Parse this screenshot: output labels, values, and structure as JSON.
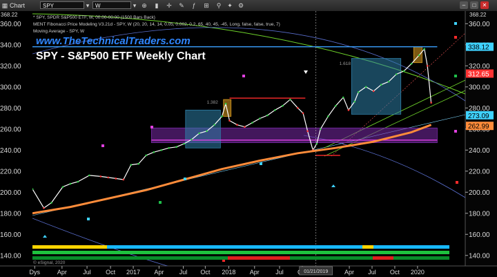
{
  "window": {
    "app_label": "Chart",
    "symbol": "SPY",
    "interval": "W"
  },
  "info_lines": [
    "* SPY, SPDR S&P500 ETF, W, 00:00-00:00 (1500 Bars Back)",
    "MENT Fibonacci Price Modeling V3.21d - SPY, W (20, 20, 14, 14, 0.05, 0.002, 0.2, 65, 40, 45, -45, Long, false, false, true, 7)",
    "Moving Average - SPY, W"
  ],
  "watermark": "www.TheTechnicalTraders.com",
  "chart_title": "SPY - S&P500 ETF Weekly Chart",
  "copyright": "© eSignal, 2020",
  "chart_data": {
    "type": "line",
    "title": "SPY - S&P500 ETF Weekly Chart",
    "ylim": [
      130,
      372
    ],
    "yticks": [
      140,
      160,
      180,
      200,
      220,
      240,
      260,
      280,
      300,
      320,
      340,
      360
    ],
    "ytick_labels": [
      "140.00",
      "160.00",
      "180.00",
      "200.00",
      "220.00",
      "240.00",
      "260.00",
      "280.00",
      "300.00",
      "320.00",
      "340.00",
      "360.00"
    ],
    "top_value_label": "368.22",
    "xticks": [
      {
        "label": "Dys",
        "t": 0.3
      },
      {
        "label": "Apr",
        "t": 3.9
      },
      {
        "label": "Jul",
        "t": 7.2
      },
      {
        "label": "Oct",
        "t": 10.3
      },
      {
        "label": "2017",
        "t": 13.3
      },
      {
        "label": "Apr",
        "t": 16.7
      },
      {
        "label": "Jul",
        "t": 19.9
      },
      {
        "label": "Oct",
        "t": 22.8
      },
      {
        "label": "2018",
        "t": 25.9
      },
      {
        "label": "Apr",
        "t": 29.3
      },
      {
        "label": "Jul",
        "t": 32.6
      },
      {
        "label": "Oct",
        "t": 35.6
      },
      {
        "label": "Apr",
        "t": 41.8
      },
      {
        "label": "Jul",
        "t": 44.8
      },
      {
        "label": "Oct",
        "t": 47.8
      },
      {
        "label": "2020",
        "t": 50.8
      }
    ],
    "cursor": {
      "label": "01/21/2019",
      "t": 37.4
    },
    "series": [
      {
        "name": "SPY",
        "color": "#ffffff",
        "t": [
          0,
          1.5,
          2.5,
          4,
          5,
          6,
          7.5,
          9,
          10,
          11,
          12,
          13,
          14,
          15,
          16,
          17,
          18,
          19,
          20,
          21,
          22,
          23,
          24,
          25,
          25.5,
          26,
          27,
          28,
          29,
          30,
          31,
          32,
          33,
          34,
          35,
          35.7,
          36.3,
          37,
          37.5,
          38,
          39,
          40,
          41,
          41.7,
          42.5,
          43,
          44,
          45,
          46,
          47,
          48,
          49,
          50,
          51,
          51.7,
          52.1,
          52.6
        ],
        "values": [
          203,
          185,
          190,
          205,
          208,
          210,
          216,
          215,
          214,
          213,
          212,
          226,
          227,
          235,
          238,
          240,
          242,
          243,
          246,
          250,
          256,
          258,
          264,
          272,
          284,
          268,
          264,
          262,
          266,
          270,
          273,
          278,
          282,
          288,
          280,
          275,
          258,
          240,
          246,
          260,
          272,
          282,
          290,
          278,
          286,
          295,
          300,
          296,
          302,
          305,
          312,
          315,
          322,
          330,
          336,
          320,
          285
        ]
      },
      {
        "name": "Moving Average",
        "color": "#ff8c3a",
        "t": [
          0,
          5,
          10,
          15,
          20,
          25,
          30,
          35,
          40,
          45,
          50,
          52.6
        ],
        "values": [
          180,
          186,
          194,
          202,
          212,
          222,
          230,
          237,
          242,
          248,
          257,
          264
        ]
      }
    ],
    "levels": [
      {
        "name": "upper-horizontal",
        "value": 338.12,
        "label": "338.12",
        "color": "#3aa0ff",
        "t0": 0,
        "t1": 53.4
      },
      {
        "name": "magenta-support",
        "value": 249.5,
        "color": "#e040e0",
        "t0": 15.7,
        "t1": 53.4
      },
      {
        "name": "red-level-2018",
        "value": 289.3,
        "color": "#ff2a2a",
        "t0": 26,
        "t1": 36
      },
      {
        "name": "red-level-2019",
        "value": 235,
        "color": "#ff2a2a",
        "t0": 37.3,
        "t1": 40.6
      }
    ],
    "zones": [
      {
        "name": "purple-support-zone",
        "y0": 247,
        "y1": 261,
        "t0": 15.7,
        "t1": 53.4,
        "color": "#7a2aa8"
      },
      {
        "name": "blue-box-2017",
        "y0": 242,
        "y1": 278,
        "t0": 20.2,
        "t1": 24.8,
        "color": "#2e7fa8"
      },
      {
        "name": "blue-box-2019",
        "y0": 274,
        "y1": 327,
        "t0": 42.1,
        "t1": 48.6,
        "color": "#2e7fa8"
      },
      {
        "name": "orange-box-2018",
        "y0": 272,
        "y1": 288,
        "t0": 25.2,
        "t1": 26.2,
        "color": "#e0a020"
      },
      {
        "name": "orange-box-2020",
        "y0": 323,
        "y1": 338,
        "t0": 50.3,
        "t1": 51.4,
        "color": "#e0a020"
      }
    ],
    "value_labels": [
      {
        "label": "338.12",
        "value": 338.12,
        "color": "#3fd2ff",
        "text_color": "#000"
      },
      {
        "label": "312.65",
        "value": 312.65,
        "color": "#ff3333",
        "text_color": "#fff"
      },
      {
        "label": "273.09",
        "value": 273.09,
        "color": "#3fd2ff",
        "text_color": "#000"
      },
      {
        "label": "262.99",
        "value": 262.99,
        "color": "#ff8c3a",
        "text_color": "#000"
      }
    ],
    "annotations": [
      {
        "label": "1.382",
        "t": 23.0,
        "value": 284
      },
      {
        "label": "1.618",
        "t": 40.5,
        "value": 321
      }
    ],
    "grid": false,
    "legend": "none"
  }
}
